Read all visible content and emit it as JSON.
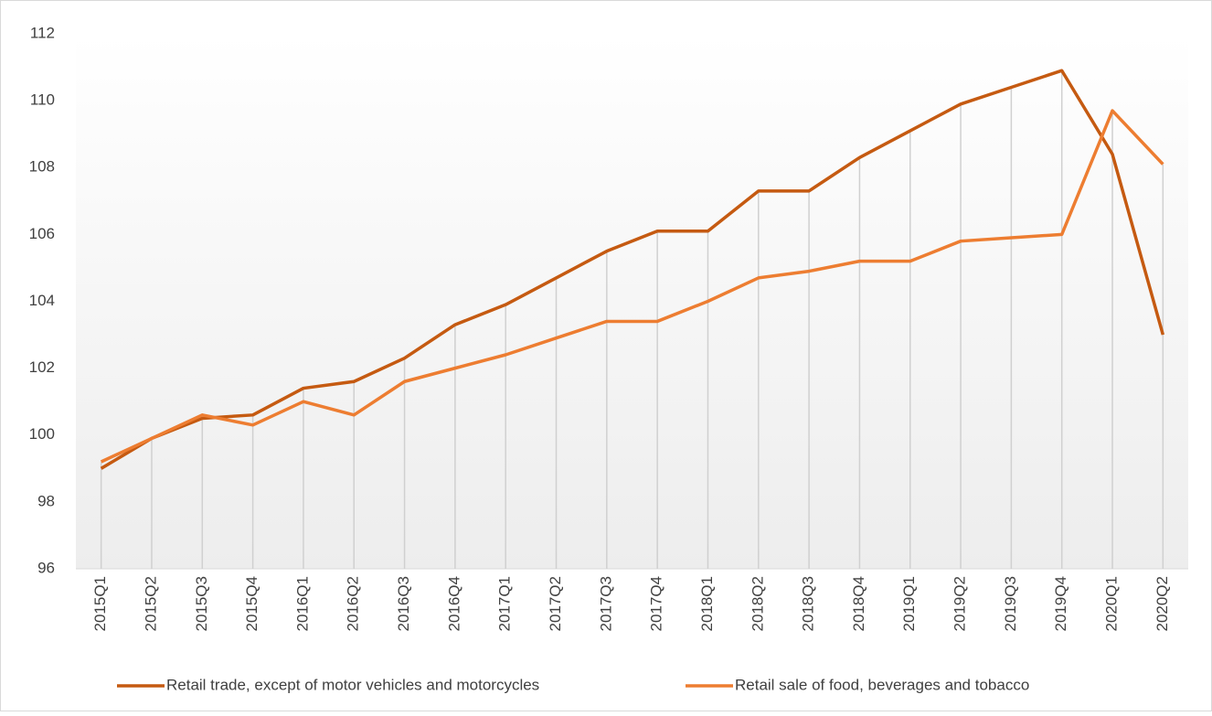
{
  "chart_data": {
    "type": "line",
    "categories": [
      "2015Q1",
      "2015Q2",
      "2015Q3",
      "2015Q4",
      "2016Q1",
      "2016Q2",
      "2016Q3",
      "2016Q4",
      "2017Q1",
      "2017Q2",
      "2017Q3",
      "2017Q4",
      "2018Q1",
      "2018Q2",
      "2018Q3",
      "2018Q4",
      "2019Q1",
      "2019Q2",
      "2019Q3",
      "2019Q4",
      "2020Q1",
      "2020Q2"
    ],
    "series": [
      {
        "name": "Retail trade, except of motor vehicles and motorcycles",
        "color": "#c55a11",
        "values": [
          99.0,
          99.9,
          100.5,
          100.6,
          101.4,
          101.6,
          102.3,
          103.3,
          103.9,
          104.7,
          105.5,
          106.1,
          106.1,
          107.3,
          107.3,
          108.3,
          109.1,
          109.9,
          110.4,
          110.9,
          108.4,
          103.0
        ]
      },
      {
        "name": "Retail sale of food, beverages and tobacco",
        "color": "#ed7d31",
        "values": [
          99.2,
          99.9,
          100.6,
          100.3,
          101.0,
          100.6,
          101.6,
          102.0,
          102.4,
          102.9,
          103.4,
          103.4,
          104.0,
          104.7,
          104.9,
          105.2,
          105.2,
          105.8,
          105.9,
          106.0,
          109.7,
          108.1
        ]
      }
    ],
    "ylim": [
      96,
      112
    ],
    "yticks": [
      96,
      98,
      100,
      102,
      104,
      106,
      108,
      110,
      112
    ],
    "legend": "bottom"
  }
}
